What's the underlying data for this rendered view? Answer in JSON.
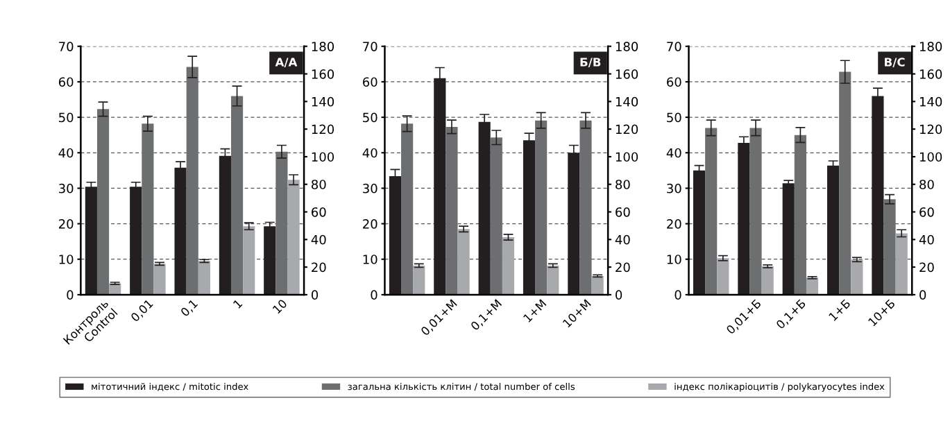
{
  "chart_data": [
    {
      "type": "bar",
      "annotations": [
        "A/A"
      ],
      "categories": [
        "Контроль\nControl",
        "0,01",
        "0,1",
        "1",
        "10"
      ],
      "ylim": [
        0,
        70
      ],
      "yticks": [
        0,
        10,
        20,
        30,
        40,
        50,
        60,
        70
      ],
      "y2lim": [
        0,
        180
      ],
      "y2ticks": [
        0,
        20,
        40,
        60,
        80,
        100,
        120,
        140,
        160,
        180
      ],
      "grid": "y",
      "legend": "bottom",
      "series": [
        {
          "name": "мітотичний індекс / mitotic index",
          "color": "#231f20",
          "values": [
            30.4,
            30.4,
            35.8,
            39.1,
            19.3
          ],
          "errors": [
            1.3,
            1.3,
            1.7,
            2,
            1.1
          ]
        },
        {
          "name": "загальна кількість клітин / total number of cells",
          "color": "#6d6e70",
          "values": [
            52.3,
            48.2,
            64.2,
            56,
            40.3
          ],
          "errors": [
            2,
            2.1,
            3,
            2.8,
            1.8
          ]
        },
        {
          "name": "індекс полікаріоцитів / polykaryocytes index",
          "color": "#a7a9ac",
          "values": [
            3.2,
            8.7,
            9.5,
            19.3,
            32.4
          ],
          "errors": [
            0.3,
            0.4,
            0.4,
            1,
            1.4
          ]
        }
      ]
    },
    {
      "type": "bar",
      "annotations": [
        "Б/В"
      ],
      "categories": [
        null,
        "0,01+M",
        "0,1+M",
        "1+M",
        "10+M"
      ],
      "ylim": [
        0,
        70
      ],
      "yticks": [
        0,
        10,
        20,
        30,
        40,
        50,
        60,
        70
      ],
      "y2lim": [
        0,
        180
      ],
      "y2ticks": [
        0,
        20,
        40,
        60,
        80,
        100,
        120,
        140,
        160,
        180
      ],
      "grid": "y",
      "series": [
        {
          "color": "#231f20",
          "values": [
            33.4,
            61,
            48.7,
            43.5,
            40
          ],
          "errors": [
            1.9,
            3,
            2.1,
            2,
            2.1
          ]
        },
        {
          "color": "#6d6e70",
          "values": [
            48.2,
            47.3,
            44.3,
            49.1,
            49.1
          ],
          "errors": [
            2.2,
            1.9,
            2,
            2.2,
            2.2
          ]
        },
        {
          "color": "#a7a9ac",
          "values": [
            8.2,
            18.5,
            16.2,
            8.2,
            5.3
          ],
          "errors": [
            0.5,
            0.8,
            0.8,
            0.5,
            0.3
          ]
        }
      ]
    },
    {
      "type": "bar",
      "annotations": [
        "В/С"
      ],
      "categories": [
        null,
        "0,01+Б",
        "0,1+Б",
        "1+Б",
        "10+Б"
      ],
      "ylim": [
        0,
        70
      ],
      "yticks": [
        0,
        10,
        20,
        30,
        40,
        50,
        60,
        70
      ],
      "y2lim": [
        0,
        180
      ],
      "y2ticks": [
        0,
        20,
        40,
        60,
        80,
        100,
        120,
        140,
        160,
        180
      ],
      "grid": "y",
      "series": [
        {
          "color": "#231f20",
          "values": [
            35,
            42.8,
            31.4,
            36.4,
            56
          ],
          "errors": [
            1.4,
            1.7,
            0.8,
            1.3,
            2.2
          ]
        },
        {
          "color": "#6d6e70",
          "values": [
            47,
            47,
            45,
            62.8,
            26.9
          ],
          "errors": [
            2.2,
            2.2,
            2.1,
            3.2,
            1.3
          ]
        },
        {
          "color": "#a7a9ac",
          "values": [
            10.3,
            8,
            4.8,
            9.9,
            17.3
          ],
          "errors": [
            0.7,
            0.4,
            0.3,
            0.6,
            1
          ]
        }
      ]
    }
  ]
}
